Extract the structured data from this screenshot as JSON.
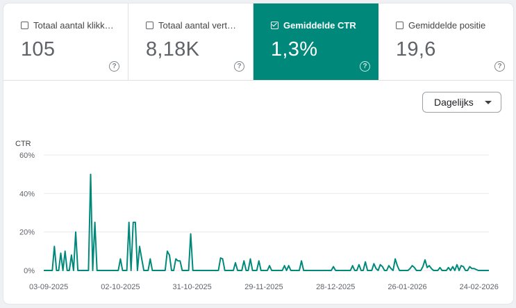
{
  "metrics": [
    {
      "label": "Totaal aantal klikk…",
      "value": "105",
      "checked": false
    },
    {
      "label": "Totaal aantal vert…",
      "value": "8,18K",
      "checked": false
    },
    {
      "label": "Gemiddelde CTR",
      "value": "1,3%",
      "checked": true
    },
    {
      "label": "Gemiddelde positie",
      "value": "19,6",
      "checked": false
    }
  ],
  "help_glyph": "?",
  "dropdown": {
    "label": "Dagelijks"
  },
  "colors": {
    "accent": "#00897b",
    "line": "#00897b"
  },
  "chart_data": {
    "type": "line",
    "ylabel": "CTR",
    "yticks": [
      "60%",
      "40%",
      "20%",
      "0%"
    ],
    "ylim": [
      0,
      60
    ],
    "xticks": [
      "03-09-2025",
      "02-10-2025",
      "31-10-2025",
      "29-11-2025",
      "28-12-2025",
      "26-01-2026",
      "24-02-2026"
    ],
    "xlim": [
      "2025-09-01",
      "2026-02-28"
    ],
    "grid": true,
    "series": [
      {
        "values": [
          [
            0,
            0
          ],
          [
            1,
            0
          ],
          [
            2,
            0
          ],
          [
            3,
            0
          ],
          [
            4,
            0
          ],
          [
            5,
            12.5
          ],
          [
            6,
            0
          ],
          [
            7,
            0
          ],
          [
            8,
            9
          ],
          [
            9,
            0
          ],
          [
            10,
            10
          ],
          [
            11,
            0
          ],
          [
            12,
            0
          ],
          [
            13,
            8
          ],
          [
            14,
            0
          ],
          [
            15,
            20
          ],
          [
            16,
            0
          ],
          [
            17,
            0
          ],
          [
            18,
            0
          ],
          [
            19,
            0
          ],
          [
            20,
            0
          ],
          [
            21,
            0
          ],
          [
            22,
            50
          ],
          [
            23,
            0
          ],
          [
            24,
            25
          ],
          [
            25,
            0
          ],
          [
            26,
            0
          ],
          [
            27,
            0
          ],
          [
            28,
            0
          ],
          [
            29,
            0
          ],
          [
            30,
            0
          ],
          [
            31,
            0
          ],
          [
            32,
            0
          ],
          [
            33,
            0
          ],
          [
            34,
            0
          ],
          [
            35,
            0
          ],
          [
            36,
            6
          ],
          [
            37,
            0
          ],
          [
            38,
            0
          ],
          [
            39,
            0
          ],
          [
            40,
            25
          ],
          [
            41,
            0
          ],
          [
            42,
            25
          ],
          [
            43,
            25
          ],
          [
            44,
            0
          ],
          [
            45,
            12.5
          ],
          [
            46,
            6
          ],
          [
            47,
            0
          ],
          [
            48,
            0
          ],
          [
            49,
            0
          ],
          [
            50,
            6
          ],
          [
            51,
            0
          ],
          [
            52,
            0
          ],
          [
            53,
            0
          ],
          [
            54,
            0
          ],
          [
            55,
            0
          ],
          [
            56,
            0
          ],
          [
            57,
            0
          ],
          [
            58,
            10
          ],
          [
            59,
            8
          ],
          [
            60,
            0
          ],
          [
            61,
            0
          ],
          [
            62,
            6
          ],
          [
            63,
            5
          ],
          [
            64,
            5
          ],
          [
            65,
            0
          ],
          [
            66,
            0
          ],
          [
            67,
            0
          ],
          [
            68,
            0
          ],
          [
            69,
            19
          ],
          [
            70,
            0
          ],
          [
            71,
            0
          ],
          [
            72,
            0
          ],
          [
            73,
            0
          ],
          [
            74,
            0
          ],
          [
            75,
            0
          ],
          [
            76,
            0
          ],
          [
            77,
            0
          ],
          [
            78,
            0
          ],
          [
            79,
            0
          ],
          [
            80,
            0
          ],
          [
            81,
            0
          ],
          [
            82,
            0
          ],
          [
            83,
            6.5
          ],
          [
            84,
            6
          ],
          [
            85,
            0
          ],
          [
            86,
            0
          ],
          [
            87,
            0
          ],
          [
            88,
            0
          ],
          [
            89,
            0
          ],
          [
            90,
            4
          ],
          [
            91,
            0
          ],
          [
            92,
            0
          ],
          [
            93,
            0
          ],
          [
            94,
            5
          ],
          [
            95,
            0
          ],
          [
            96,
            0
          ],
          [
            97,
            6
          ],
          [
            98,
            0
          ],
          [
            99,
            0
          ],
          [
            100,
            0
          ],
          [
            101,
            5
          ],
          [
            102,
            0
          ],
          [
            103,
            0
          ],
          [
            104,
            0
          ],
          [
            105,
            0
          ],
          [
            106,
            2.5
          ],
          [
            107,
            0
          ],
          [
            108,
            0
          ],
          [
            109,
            0
          ],
          [
            110,
            0
          ],
          [
            111,
            0
          ],
          [
            112,
            0
          ],
          [
            113,
            2.5
          ],
          [
            114,
            0
          ],
          [
            115,
            2.5
          ],
          [
            116,
            0
          ],
          [
            117,
            0
          ],
          [
            118,
            0
          ],
          [
            119,
            0
          ],
          [
            120,
            0
          ],
          [
            121,
            5
          ],
          [
            122,
            0
          ],
          [
            123,
            0
          ],
          [
            124,
            0
          ],
          [
            125,
            0
          ],
          [
            126,
            0
          ],
          [
            127,
            0
          ],
          [
            128,
            0
          ],
          [
            129,
            0
          ],
          [
            130,
            0
          ],
          [
            131,
            0
          ],
          [
            132,
            0
          ],
          [
            133,
            0
          ],
          [
            134,
            0
          ],
          [
            135,
            0
          ],
          [
            136,
            2
          ],
          [
            137,
            0
          ],
          [
            138,
            0
          ],
          [
            139,
            0
          ],
          [
            140,
            0
          ],
          [
            141,
            0
          ],
          [
            142,
            0
          ],
          [
            143,
            0
          ],
          [
            144,
            0
          ],
          [
            145,
            2.5
          ],
          [
            146,
            0
          ],
          [
            147,
            0
          ],
          [
            148,
            3
          ],
          [
            149,
            0
          ],
          [
            150,
            0
          ],
          [
            151,
            4.5
          ],
          [
            152,
            0
          ],
          [
            153,
            0
          ],
          [
            154,
            0
          ],
          [
            155,
            3.5
          ],
          [
            156,
            1
          ],
          [
            157,
            0
          ],
          [
            158,
            3
          ],
          [
            159,
            2
          ],
          [
            160,
            0
          ],
          [
            161,
            0
          ],
          [
            162,
            2.5
          ],
          [
            163,
            1
          ],
          [
            164,
            0
          ],
          [
            165,
            6
          ],
          [
            166,
            2.5
          ],
          [
            167,
            0
          ],
          [
            168,
            0
          ],
          [
            169,
            0
          ],
          [
            170,
            0
          ],
          [
            171,
            0
          ],
          [
            172,
            1
          ],
          [
            173,
            2.5
          ],
          [
            174,
            1.5
          ],
          [
            175,
            0
          ],
          [
            176,
            0
          ],
          [
            177,
            0
          ],
          [
            178,
            2
          ],
          [
            179,
            5.5
          ],
          [
            180,
            1.5
          ],
          [
            181,
            2.5
          ],
          [
            182,
            1
          ],
          [
            183,
            0
          ],
          [
            184,
            0
          ],
          [
            185,
            0
          ],
          [
            186,
            1.5
          ],
          [
            187,
            0
          ],
          [
            188,
            0
          ],
          [
            189,
            0
          ],
          [
            190,
            1.5
          ],
          [
            191,
            0
          ],
          [
            192,
            2
          ],
          [
            193,
            0
          ],
          [
            194,
            3
          ],
          [
            195,
            0
          ],
          [
            196,
            2.5
          ],
          [
            197,
            2
          ],
          [
            198,
            0
          ],
          [
            199,
            0
          ],
          [
            200,
            2
          ],
          [
            201,
            1
          ],
          [
            202,
            1
          ],
          [
            203,
            0.5
          ],
          [
            204,
            0
          ],
          [
            205,
            0
          ],
          [
            206,
            0
          ],
          [
            207,
            0
          ],
          [
            208,
            0
          ],
          [
            209,
            0
          ]
        ]
      }
    ]
  }
}
